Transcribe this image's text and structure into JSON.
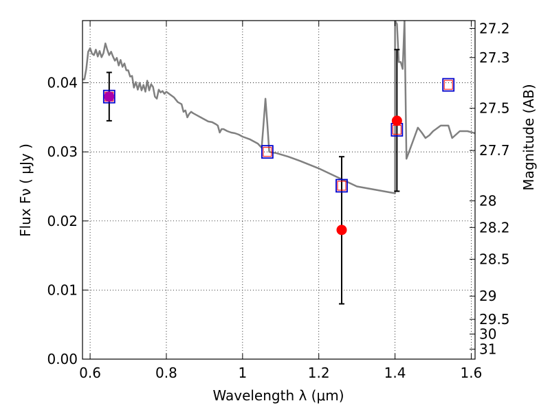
{
  "chart_data": {
    "type": "line",
    "xlabel": "Wavelength  λ (μm)",
    "ylabel": "Flux  Fν  ( μJy )",
    "y2label": "Magnitude (AB)",
    "xlim": [
      0.58,
      1.61
    ],
    "ylim": [
      0.0,
      0.049
    ],
    "grid": true,
    "x_ticks": [
      {
        "value": 0.6,
        "label": "0.6"
      },
      {
        "value": 0.8,
        "label": "0.8"
      },
      {
        "value": 1.0,
        "label": "1"
      },
      {
        "value": 1.2,
        "label": "1.2"
      },
      {
        "value": 1.4,
        "label": "1.4"
      },
      {
        "value": 1.6,
        "label": "1.6"
      }
    ],
    "y_ticks": [
      {
        "value": 0.0,
        "label": "0.00"
      },
      {
        "value": 0.01,
        "label": "0.01"
      },
      {
        "value": 0.02,
        "label": "0.02"
      },
      {
        "value": 0.03,
        "label": "0.03"
      },
      {
        "value": 0.04,
        "label": "0.04"
      }
    ],
    "mag_ticks": [
      {
        "value": 27.2,
        "label": "27.2"
      },
      {
        "value": 27.3,
        "label": "27.3"
      },
      {
        "value": 27.5,
        "label": "27.5"
      },
      {
        "value": 27.7,
        "label": "27.7"
      },
      {
        "value": 28,
        "label": "28"
      },
      {
        "value": 28.2,
        "label": "28.2"
      },
      {
        "value": 28.5,
        "label": "28.5"
      },
      {
        "value": 29,
        "label": "29"
      },
      {
        "value": 29.5,
        "label": "29.5"
      },
      {
        "value": 30,
        "label": "30"
      },
      {
        "value": 31,
        "label": "31"
      }
    ],
    "colors": {
      "model": "#808080",
      "observed": "#ff0000",
      "model_mag_outline": "#0000cc",
      "model_mag_inner": "#ff0000",
      "overlap": "#aa00aa",
      "errorbar": "#000000"
    },
    "model_spectrum": [
      [
        0.58,
        0.0405
      ],
      [
        0.585,
        0.0405
      ],
      [
        0.59,
        0.042
      ],
      [
        0.595,
        0.0445
      ],
      [
        0.6,
        0.045
      ],
      [
        0.605,
        0.0442
      ],
      [
        0.61,
        0.044
      ],
      [
        0.615,
        0.0448
      ],
      [
        0.62,
        0.0438
      ],
      [
        0.625,
        0.0446
      ],
      [
        0.63,
        0.0437
      ],
      [
        0.635,
        0.0443
      ],
      [
        0.64,
        0.0457
      ],
      [
        0.645,
        0.0448
      ],
      [
        0.65,
        0.044
      ],
      [
        0.655,
        0.0445
      ],
      [
        0.66,
        0.0438
      ],
      [
        0.665,
        0.0432
      ],
      [
        0.67,
        0.0436
      ],
      [
        0.675,
        0.0425
      ],
      [
        0.68,
        0.0433
      ],
      [
        0.685,
        0.0423
      ],
      [
        0.69,
        0.0428
      ],
      [
        0.695,
        0.0418
      ],
      [
        0.7,
        0.0418
      ],
      [
        0.705,
        0.0409
      ],
      [
        0.71,
        0.041
      ],
      [
        0.715,
        0.0393
      ],
      [
        0.72,
        0.0401
      ],
      [
        0.725,
        0.039
      ],
      [
        0.73,
        0.04
      ],
      [
        0.735,
        0.0389
      ],
      [
        0.74,
        0.0397
      ],
      [
        0.745,
        0.0387
      ],
      [
        0.75,
        0.0403
      ],
      [
        0.755,
        0.0389
      ],
      [
        0.76,
        0.0398
      ],
      [
        0.765,
        0.0394
      ],
      [
        0.77,
        0.038
      ],
      [
        0.775,
        0.0377
      ],
      [
        0.78,
        0.039
      ],
      [
        0.785,
        0.0386
      ],
      [
        0.79,
        0.0388
      ],
      [
        0.795,
        0.0384
      ],
      [
        0.8,
        0.0387
      ],
      [
        0.81,
        0.0383
      ],
      [
        0.82,
        0.0379
      ],
      [
        0.83,
        0.0372
      ],
      [
        0.84,
        0.0369
      ],
      [
        0.845,
        0.0358
      ],
      [
        0.85,
        0.036
      ],
      [
        0.855,
        0.035
      ],
      [
        0.86,
        0.0355
      ],
      [
        0.865,
        0.0358
      ],
      [
        0.87,
        0.0356
      ],
      [
        0.88,
        0.0353
      ],
      [
        0.89,
        0.035
      ],
      [
        0.9,
        0.0347
      ],
      [
        0.91,
        0.0344
      ],
      [
        0.92,
        0.0343
      ],
      [
        0.93,
        0.034
      ],
      [
        0.935,
        0.0338
      ],
      [
        0.94,
        0.0328
      ],
      [
        0.945,
        0.0333
      ],
      [
        0.95,
        0.0333
      ],
      [
        0.96,
        0.033
      ],
      [
        0.97,
        0.0328
      ],
      [
        0.98,
        0.0327
      ],
      [
        0.99,
        0.0325
      ],
      [
        1.0,
        0.0322
      ],
      [
        1.02,
        0.0318
      ],
      [
        1.04,
        0.0312
      ],
      [
        1.05,
        0.0306
      ],
      [
        1.055,
        0.034
      ],
      [
        1.06,
        0.0377
      ],
      [
        1.065,
        0.034
      ],
      [
        1.07,
        0.03
      ],
      [
        1.09,
        0.0298
      ],
      [
        1.12,
        0.0293
      ],
      [
        1.15,
        0.0287
      ],
      [
        1.2,
        0.0276
      ],
      [
        1.25,
        0.0263
      ],
      [
        1.3,
        0.025
      ],
      [
        1.35,
        0.0245
      ],
      [
        1.4,
        0.024
      ],
      [
        1.4,
        0.049
      ],
      [
        1.4,
        0.049
      ],
      [
        1.405,
        0.0485
      ],
      [
        1.41,
        0.043
      ],
      [
        1.415,
        0.043
      ],
      [
        1.42,
        0.042
      ],
      [
        1.425,
        0.049
      ],
      [
        1.43,
        0.029
      ],
      [
        1.44,
        0.0305
      ],
      [
        1.45,
        0.032
      ],
      [
        1.46,
        0.0335
      ],
      [
        1.47,
        0.0328
      ],
      [
        1.48,
        0.032
      ],
      [
        1.49,
        0.0324
      ],
      [
        1.5,
        0.033
      ],
      [
        1.52,
        0.0338
      ],
      [
        1.54,
        0.0338
      ],
      [
        1.55,
        0.032
      ],
      [
        1.57,
        0.033
      ],
      [
        1.59,
        0.033
      ],
      [
        1.61,
        0.0327
      ]
    ],
    "model_band_flux": [
      {
        "x": 0.65,
        "y": 0.038
      },
      {
        "x": 1.065,
        "y": 0.03
      },
      {
        "x": 1.26,
        "y": 0.0251
      },
      {
        "x": 1.405,
        "y": 0.0332
      },
      {
        "x": 1.54,
        "y": 0.0397
      }
    ],
    "observed": [
      {
        "x": 0.65,
        "y": 0.038,
        "err_low": 0.0035,
        "err_high": 0.0035
      },
      {
        "x": 1.26,
        "y": 0.0187,
        "err_low": 0.0107,
        "err_high": 0.0106
      },
      {
        "x": 1.405,
        "y": 0.0345,
        "err_low": 0.0102,
        "err_high": 0.0103
      }
    ]
  }
}
